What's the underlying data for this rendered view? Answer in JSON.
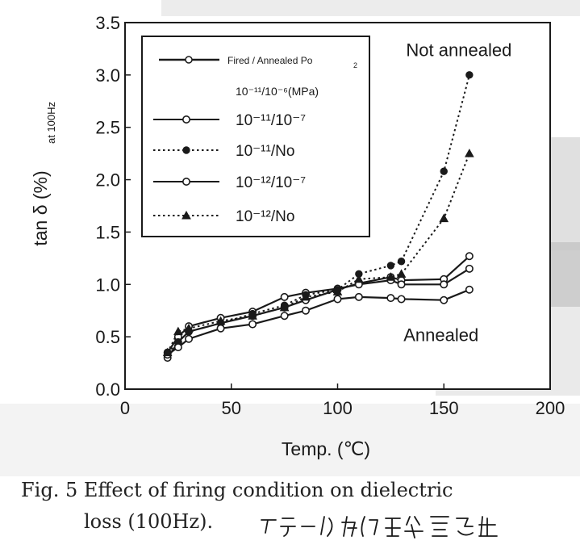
{
  "caption": {
    "line1": "Fig. 5   Effect of firing condition on dielectric",
    "line2": "loss (100Hz).",
    "handwritten_note": "アニール的な酸素分圧"
  },
  "colors": {
    "ink": "#1a1a1a",
    "plot_background": "#ffffff",
    "scan_gray": "#bdbdbd"
  },
  "chart_data": {
    "type": "line",
    "xlabel": "Temp. (℃)",
    "ylabel": "tan δ (%)",
    "ylabel_sub": "at 100Hz",
    "xlim": [
      0,
      200
    ],
    "ylim": [
      0.0,
      3.5
    ],
    "xticks": [
      0,
      50,
      100,
      150,
      200
    ],
    "yticks": [
      0.0,
      0.5,
      1.0,
      1.5,
      2.0,
      2.5,
      3.0,
      3.5
    ],
    "xtick_labels": [
      "0",
      "50",
      "100",
      "150",
      "200"
    ],
    "ytick_labels": [
      "0.0",
      "0.5",
      "1.0",
      "1.5",
      "2.0",
      "2.5",
      "3.0",
      "3.5"
    ],
    "grid": false,
    "legend_placement": "top-left",
    "legend": {
      "header": "Fired / Annealed Po",
      "header_sub": "2",
      "unit_row": "10⁻¹¹/10⁻⁶(MPa)"
    },
    "annotations": [
      {
        "text": "Not annealed",
        "x": 155,
        "y": 3.18
      },
      {
        "text": "Annealed",
        "x": 150,
        "y": 0.46
      }
    ],
    "series": [
      {
        "name": "10⁻¹¹/10⁻⁶",
        "marker": "open-circle",
        "dash": "solid",
        "x": [
          20,
          25,
          30,
          45,
          60,
          75,
          85,
          100,
          110,
          125,
          130,
          150,
          162
        ],
        "y": [
          0.3,
          0.45,
          0.55,
          0.63,
          0.7,
          0.78,
          0.85,
          0.95,
          1.01,
          1.07,
          1.04,
          1.05,
          1.27
        ]
      },
      {
        "name": "10⁻¹¹/10⁻⁷",
        "marker": "open-circle",
        "dash": "solid",
        "x": [
          20,
          25,
          30,
          45,
          60,
          75,
          85,
          100,
          110,
          125,
          130,
          150,
          162
        ],
        "y": [
          0.35,
          0.5,
          0.6,
          0.68,
          0.74,
          0.88,
          0.92,
          0.96,
          1.0,
          1.04,
          1.0,
          1.0,
          1.15
        ]
      },
      {
        "name": "10⁻¹¹/No",
        "marker": "filled-circle",
        "dash": "dotted",
        "x": [
          20,
          25,
          30,
          45,
          60,
          75,
          85,
          100,
          110,
          125,
          130,
          150,
          162
        ],
        "y": [
          0.35,
          0.45,
          0.55,
          0.63,
          0.72,
          0.8,
          0.9,
          0.95,
          1.1,
          1.18,
          1.22,
          2.08,
          3.0
        ]
      },
      {
        "name": "10⁻¹²/10⁻⁷",
        "marker": "open-circle",
        "dash": "solid",
        "x": [
          20,
          25,
          30,
          45,
          60,
          75,
          85,
          100,
          110,
          125,
          130,
          150,
          162
        ],
        "y": [
          0.33,
          0.4,
          0.48,
          0.58,
          0.62,
          0.7,
          0.75,
          0.86,
          0.88,
          0.87,
          0.86,
          0.85,
          0.95
        ]
      },
      {
        "name": "10⁻¹²/No",
        "marker": "filled-triangle",
        "dash": "dotted",
        "x": [
          20,
          25,
          30,
          45,
          60,
          75,
          85,
          100,
          110,
          125,
          130,
          150,
          162
        ],
        "y": [
          0.35,
          0.55,
          0.58,
          0.65,
          0.7,
          0.78,
          0.88,
          0.93,
          1.05,
          1.07,
          1.1,
          1.63,
          2.25
        ]
      }
    ]
  }
}
